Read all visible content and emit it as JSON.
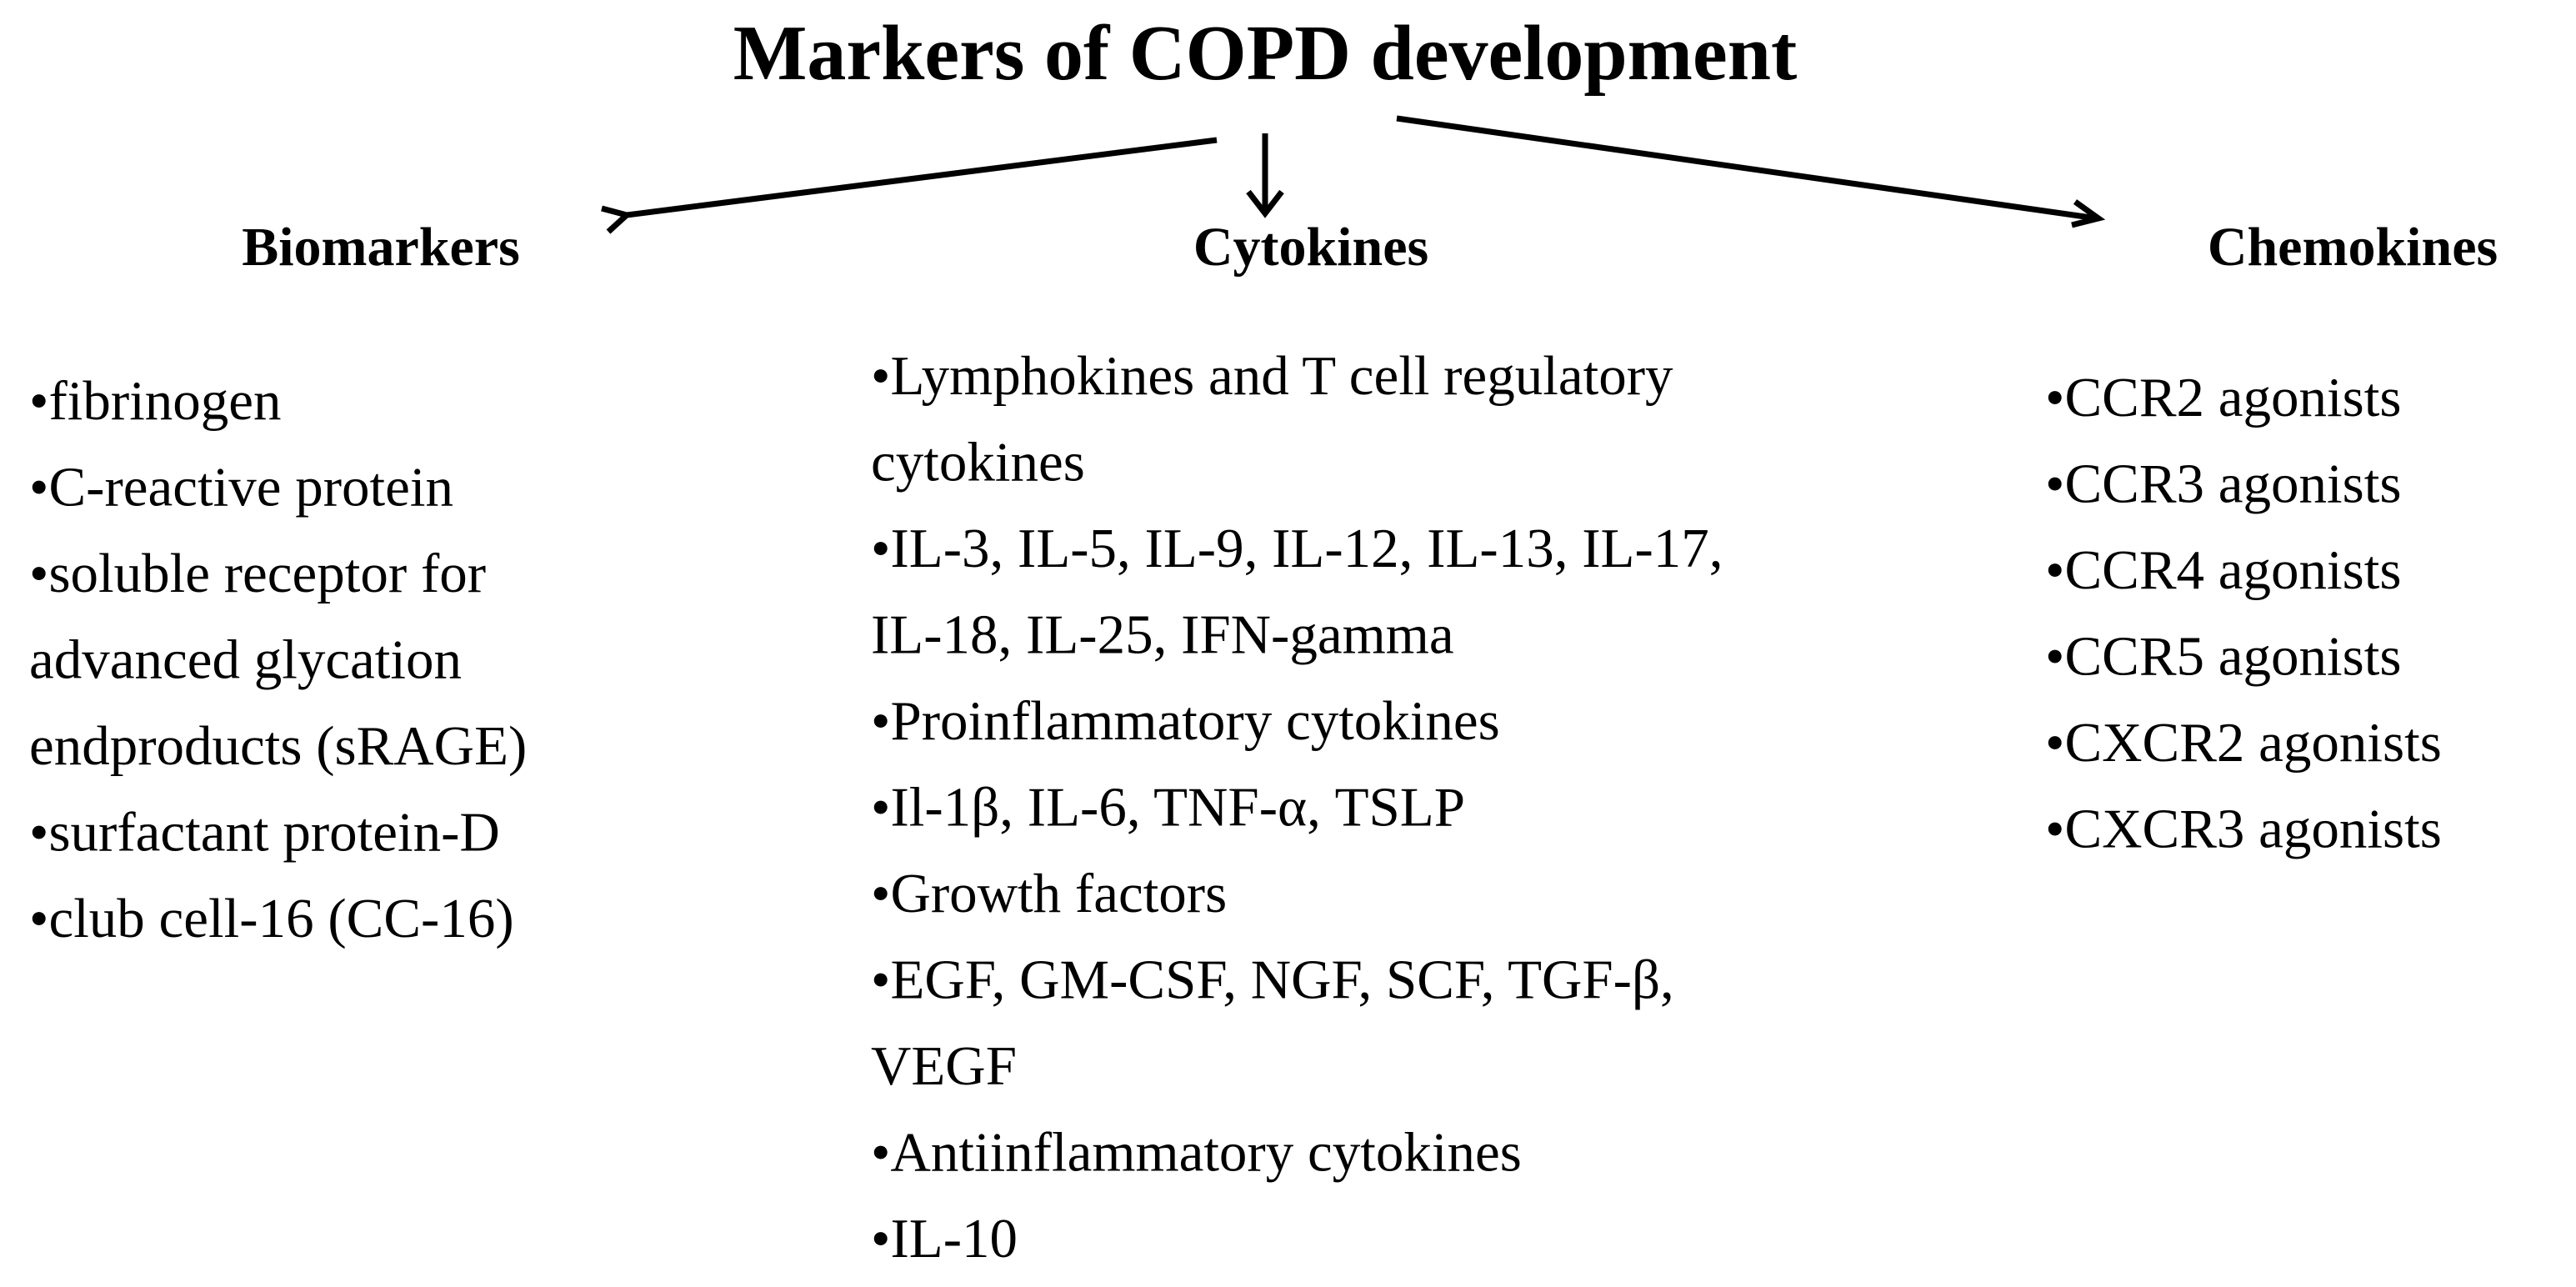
{
  "title": "Markers of COPD development",
  "columns": [
    {
      "heading": "Biomarkers",
      "items": [
        [
          "•fibrinogen"
        ],
        [
          "•C-reactive protein"
        ],
        [
          "•soluble receptor for",
          "advanced glycation",
          "endproducts (sRAGE)"
        ],
        [
          "•surfactant protein-D"
        ],
        [
          "•club cell-16 (CC-16)"
        ]
      ]
    },
    {
      "heading": "Cytokines",
      "items": [
        [
          "•Lymphokines and T cell regulatory",
          "cytokines"
        ],
        [
          "•IL-3, IL-5, IL-9, IL-12, IL-13, IL-17,",
          "IL-18, IL-25, IFN-gamma"
        ],
        [
          "•Proinflammatory cytokines"
        ],
        [
          "•Il-1β, IL-6, TNF-α, TSLP"
        ],
        [
          "•Growth factors"
        ],
        [
          "•EGF, GM-CSF, NGF, SCF, TGF-β,",
          "VEGF"
        ],
        [
          "•Antiinflammatory cytokines"
        ],
        [
          "•IL-10"
        ]
      ]
    },
    {
      "heading": "Chemokines",
      "items": [
        [
          "•CCR2 agonists"
        ],
        [
          "•CCR3 agonists"
        ],
        [
          "•CCR4 agonists"
        ],
        [
          "•CCR5 agonists"
        ],
        [
          "•CXCR2 agonists"
        ],
        [
          "•CXCR3 agonists"
        ]
      ]
    }
  ]
}
